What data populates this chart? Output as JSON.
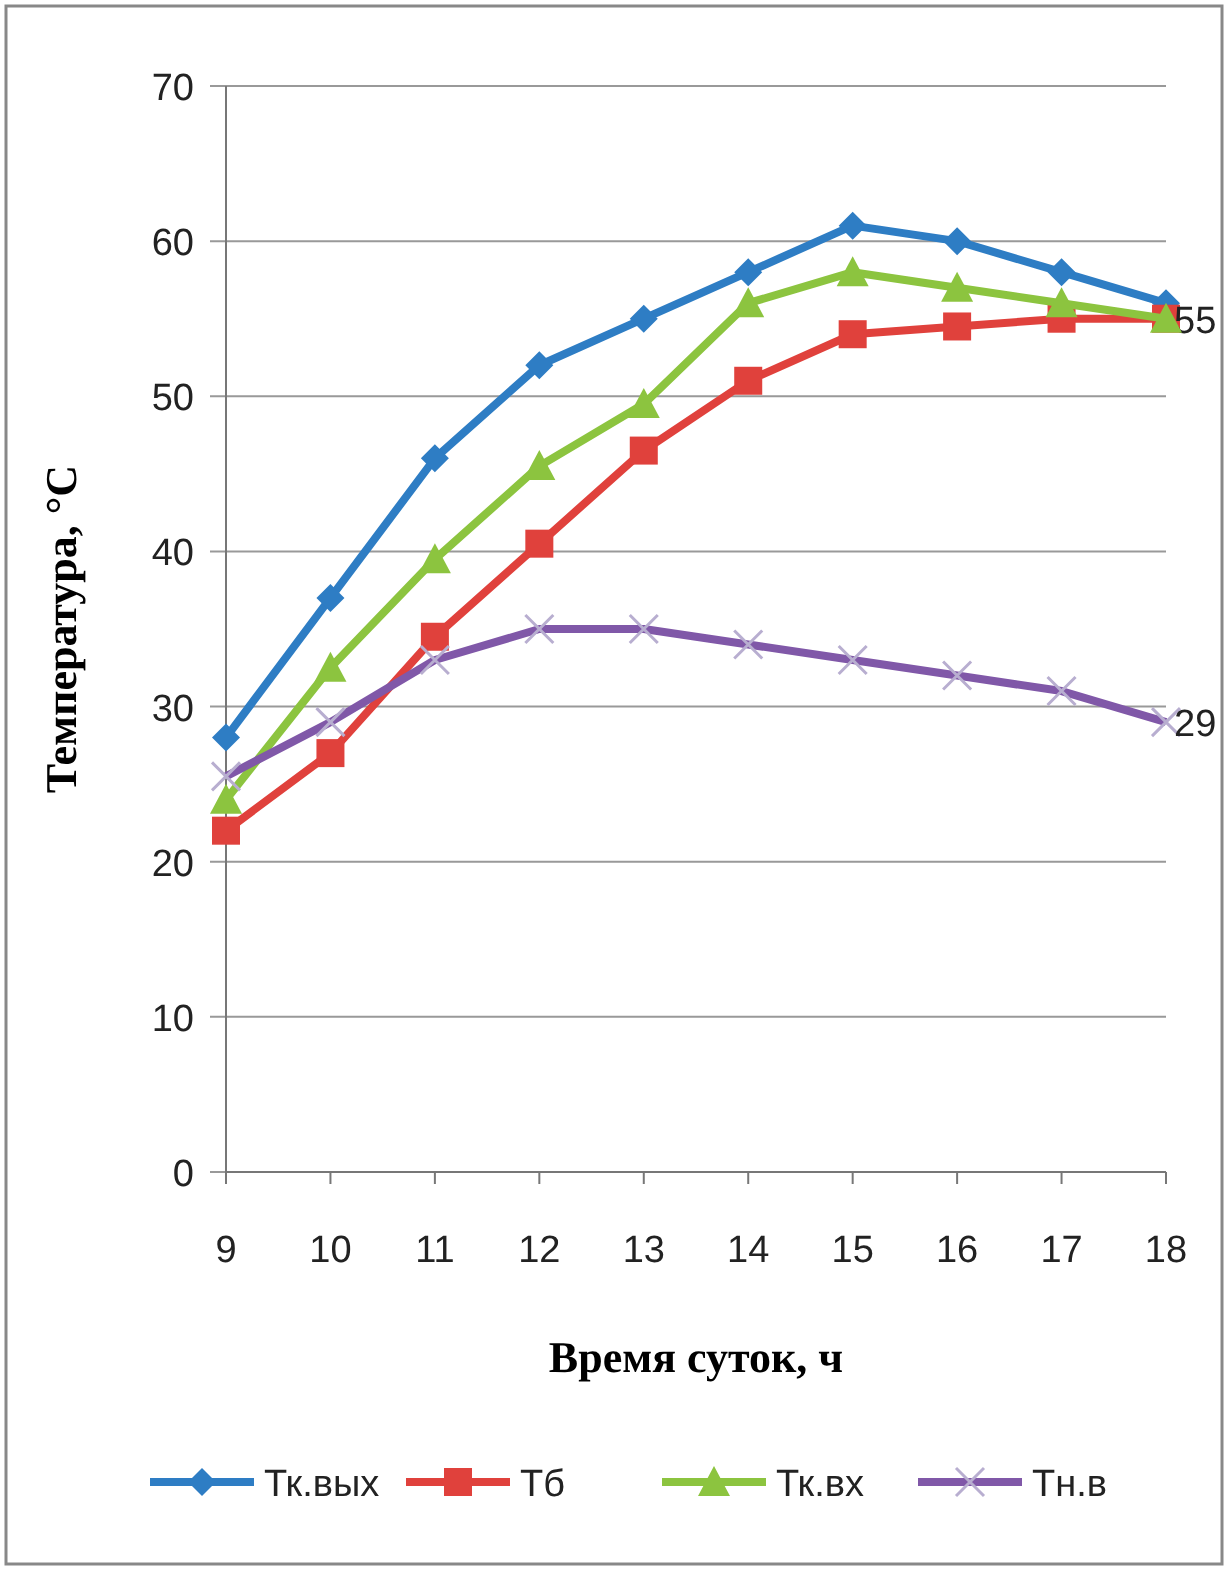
{
  "chart_data": {
    "type": "line",
    "xlabel": "Время суток, ч",
    "ylabel": "Температура, °С",
    "x": [
      9,
      10,
      11,
      12,
      13,
      14,
      15,
      16,
      17,
      18
    ],
    "xlim": [
      9,
      18
    ],
    "xticks": [
      9,
      10,
      11,
      12,
      13,
      14,
      15,
      16,
      17,
      18
    ],
    "ylim": [
      0,
      70
    ],
    "yticks": [
      0,
      10,
      20,
      30,
      40,
      50,
      60,
      70
    ],
    "grid": "y",
    "legend": "bottom",
    "series": [
      {
        "name": "Тк.вых",
        "color": "#2e7dc4",
        "marker": "diamond",
        "values": [
          28,
          37,
          46,
          52,
          55,
          58,
          61,
          60,
          58,
          56
        ]
      },
      {
        "name": "Тб",
        "color": "#e0413c",
        "marker": "square",
        "values": [
          22,
          27,
          34.5,
          40.5,
          46.5,
          51,
          54,
          54.5,
          55,
          55
        ],
        "value_labels": [
          null,
          null,
          null,
          null,
          null,
          null,
          null,
          null,
          null,
          "55"
        ]
      },
      {
        "name": "Тк.вх",
        "color": "#8cc43f",
        "marker": "triangle",
        "values": [
          24,
          32.5,
          39.5,
          45.5,
          49.5,
          56,
          58,
          57,
          56,
          55
        ]
      },
      {
        "name": "Тн.в",
        "color": "#8058a8",
        "marker": "cross",
        "values": [
          25.5,
          29,
          33,
          35,
          35,
          34,
          33,
          32,
          31,
          29
        ],
        "value_labels": [
          null,
          null,
          null,
          null,
          null,
          null,
          null,
          null,
          null,
          "29"
        ]
      }
    ]
  }
}
